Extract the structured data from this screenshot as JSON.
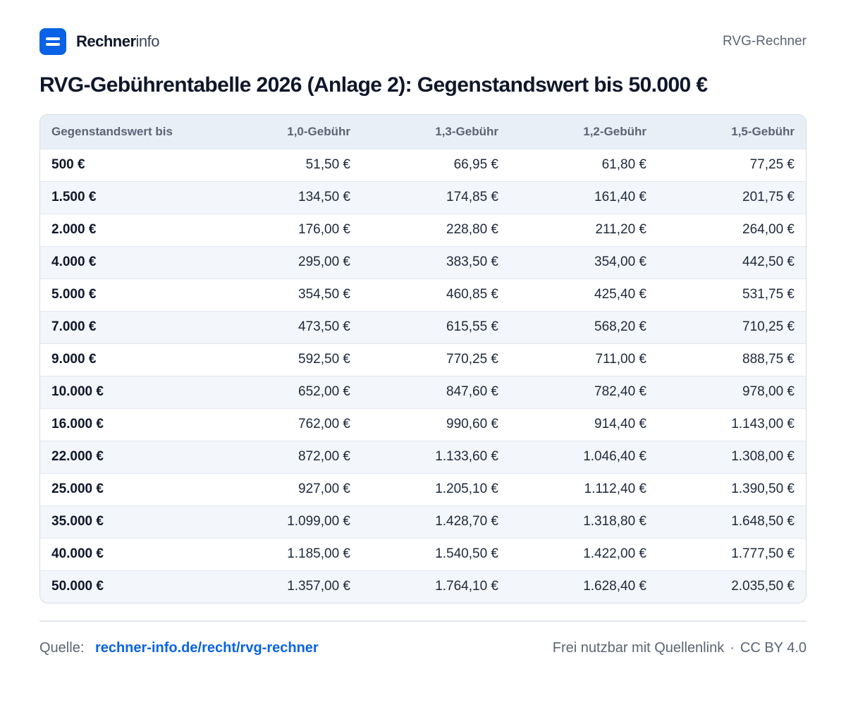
{
  "brand": {
    "name_strong": "Rechner",
    "name_light": "info"
  },
  "header": {
    "link_label": "RVG-Rechner"
  },
  "page_title": "RVG-Gebührentabelle 2026 (Anlage 2): Gegenstandswert bis 50.000 €",
  "table": {
    "columns": [
      "Gegenstandswert bis",
      "1,0-Gebühr",
      "1,3-Gebühr",
      "1,2-Gebühr",
      "1,5-Gebühr"
    ],
    "rows": [
      [
        "500 €",
        "51,50 €",
        "66,95 €",
        "61,80 €",
        "77,25 €"
      ],
      [
        "1.500 €",
        "134,50 €",
        "174,85 €",
        "161,40 €",
        "201,75 €"
      ],
      [
        "2.000 €",
        "176,00 €",
        "228,80 €",
        "211,20 €",
        "264,00 €"
      ],
      [
        "4.000 €",
        "295,00 €",
        "383,50 €",
        "354,00 €",
        "442,50 €"
      ],
      [
        "5.000 €",
        "354,50 €",
        "460,85 €",
        "425,40 €",
        "531,75 €"
      ],
      [
        "7.000 €",
        "473,50 €",
        "615,55 €",
        "568,20 €",
        "710,25 €"
      ],
      [
        "9.000 €",
        "592,50 €",
        "770,25 €",
        "711,00 €",
        "888,75 €"
      ],
      [
        "10.000 €",
        "652,00 €",
        "847,60 €",
        "782,40 €",
        "978,00 €"
      ],
      [
        "16.000 €",
        "762,00 €",
        "990,60 €",
        "914,40 €",
        "1.143,00 €"
      ],
      [
        "22.000 €",
        "872,00 €",
        "1.133,60 €",
        "1.046,40 €",
        "1.308,00 €"
      ],
      [
        "25.000 €",
        "927,00 €",
        "1.205,10 €",
        "1.112,40 €",
        "1.390,50 €"
      ],
      [
        "35.000 €",
        "1.099,00 €",
        "1.428,70 €",
        "1.318,80 €",
        "1.648,50 €"
      ],
      [
        "40.000 €",
        "1.185,00 €",
        "1.540,50 €",
        "1.422,00 €",
        "1.777,50 €"
      ],
      [
        "50.000 €",
        "1.357,00 €",
        "1.764,10 €",
        "1.628,40 €",
        "2.035,50 €"
      ]
    ]
  },
  "footer": {
    "source_label": "Quelle:",
    "source_link": "rechner-info.de/recht/rvg-rechner",
    "license_text": "Frei nutzbar mit Quellenlink",
    "separator": "·",
    "license_name": "CC BY 4.0"
  },
  "colors": {
    "accent": "#0a63e6",
    "header_row": "#e9eff6",
    "zebra_row": "#f3f6fa"
  }
}
